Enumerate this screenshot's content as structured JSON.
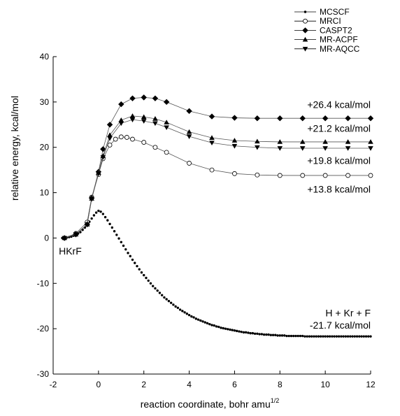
{
  "chart_data": {
    "type": "line",
    "xlabel": "reaction coordinate, bohr amu",
    "xlabel_sup": "1/2",
    "ylabel": "relative energy, kcal/mol",
    "xlim": [
      -2,
      12
    ],
    "ylim": [
      -30,
      40
    ],
    "xticks": [
      -2,
      0,
      2,
      4,
      6,
      8,
      10,
      12
    ],
    "yticks": [
      -30,
      -20,
      -10,
      0,
      10,
      20,
      30,
      40
    ],
    "grid": false,
    "legend_position": "top-right",
    "series": [
      {
        "name": "MCSCF",
        "marker": "dot",
        "x": [
          -1.6,
          -1.5,
          -1.4,
          -1.3,
          -1.2,
          -1.1,
          -1.0,
          -0.9,
          -0.8,
          -0.7,
          -0.6,
          -0.5,
          -0.4,
          -0.3,
          -0.2,
          -0.1,
          0.0,
          0.1,
          0.2,
          0.3,
          0.4,
          0.5,
          0.6,
          0.7,
          0.8,
          0.9,
          1.0,
          1.1,
          1.2,
          1.3,
          1.4,
          1.5,
          1.6,
          1.7,
          1.8,
          1.9,
          2.0,
          2.1,
          2.2,
          2.3,
          2.4,
          2.5,
          2.6,
          2.7,
          2.8,
          2.9,
          3.0,
          3.1,
          3.2,
          3.3,
          3.4,
          3.5,
          3.6,
          3.7,
          3.8,
          3.9,
          4.0,
          4.1,
          4.2,
          4.3,
          4.4,
          4.5,
          4.6,
          4.7,
          4.8,
          4.9,
          5.0,
          5.1,
          5.2,
          5.3,
          5.4,
          5.5,
          5.6,
          5.7,
          5.8,
          5.9,
          6.0,
          6.1,
          6.2,
          6.3,
          6.4,
          6.5,
          6.6,
          6.7,
          6.8,
          6.9,
          7.0,
          7.1,
          7.2,
          7.3,
          7.4,
          7.5,
          7.6,
          7.7,
          7.8,
          7.9,
          8.0,
          8.1,
          8.2,
          8.3,
          8.4,
          8.5,
          8.6,
          8.7,
          8.8,
          8.9,
          9.0,
          9.1,
          9.2,
          9.3,
          9.4,
          9.5,
          9.6,
          9.7,
          9.8,
          9.9,
          10.0,
          10.1,
          10.2,
          10.3,
          10.4,
          10.5,
          10.6,
          10.7,
          10.8,
          10.9,
          11.0,
          11.1,
          11.2,
          11.3,
          11.4,
          11.5,
          11.6,
          11.7,
          11.8,
          11.9,
          12.0
        ],
        "y": [
          0.0,
          0.0,
          0.1,
          0.2,
          0.3,
          0.5,
          0.7,
          1.0,
          1.3,
          1.8,
          2.3,
          2.9,
          3.6,
          4.3,
          5.0,
          5.6,
          6.0,
          5.8,
          5.3,
          4.6,
          3.9,
          3.1,
          2.3,
          1.5,
          0.7,
          -0.1,
          -0.9,
          -1.7,
          -2.5,
          -3.3,
          -4.0,
          -4.8,
          -5.5,
          -6.2,
          -6.9,
          -7.6,
          -8.2,
          -8.8,
          -9.4,
          -10.0,
          -10.6,
          -11.1,
          -11.6,
          -12.1,
          -12.6,
          -13.1,
          -13.5,
          -13.9,
          -14.3,
          -14.7,
          -15.1,
          -15.4,
          -15.8,
          -16.1,
          -16.4,
          -16.7,
          -17.0,
          -17.3,
          -17.5,
          -17.8,
          -18.0,
          -18.2,
          -18.4,
          -18.6,
          -18.8,
          -19.0,
          -19.2,
          -19.3,
          -19.5,
          -19.6,
          -19.8,
          -19.9,
          -20.0,
          -20.1,
          -20.2,
          -20.3,
          -20.4,
          -20.5,
          -20.6,
          -20.7,
          -20.8,
          -20.8,
          -20.9,
          -21.0,
          -21.0,
          -21.1,
          -21.1,
          -21.2,
          -21.2,
          -21.3,
          -21.3,
          -21.3,
          -21.4,
          -21.4,
          -21.4,
          -21.5,
          -21.5,
          -21.5,
          -21.5,
          -21.6,
          -21.6,
          -21.6,
          -21.6,
          -21.6,
          -21.6,
          -21.6,
          -21.6,
          -21.7,
          -21.7,
          -21.7,
          -21.7,
          -21.7,
          -21.7,
          -21.7,
          -21.7,
          -21.7,
          -21.7,
          -21.7,
          -21.7,
          -21.7,
          -21.7,
          -21.7,
          -21.7,
          -21.7,
          -21.7,
          -21.7,
          -21.7,
          -21.7,
          -21.7,
          -21.7,
          -21.7,
          -21.7,
          -21.7,
          -21.7,
          -21.7,
          -21.7,
          -21.7
        ]
      },
      {
        "name": "MRCI",
        "marker": "circle-open",
        "x": [
          -1.5,
          -1.0,
          -0.5,
          -0.3,
          0.0,
          0.2,
          0.5,
          0.75,
          1.0,
          1.25,
          1.5,
          2.0,
          2.5,
          3.0,
          4.0,
          5.0,
          6.0,
          7.0,
          8.0,
          9.0,
          10.0,
          11.0,
          12.0
        ],
        "y": [
          0.0,
          1.0,
          3.5,
          9.0,
          14.0,
          17.5,
          20.5,
          21.8,
          22.3,
          22.2,
          21.8,
          21.1,
          20.0,
          18.9,
          16.5,
          15.0,
          14.2,
          13.9,
          13.8,
          13.8,
          13.8,
          13.8,
          13.8
        ]
      },
      {
        "name": "CASPT2",
        "marker": "diamond",
        "x": [
          -1.5,
          -1.0,
          -0.5,
          -0.3,
          0.0,
          0.2,
          0.5,
          1.0,
          1.5,
          2.0,
          2.5,
          3.0,
          4.0,
          5.0,
          6.0,
          7.0,
          8.0,
          9.0,
          10.0,
          11.0,
          12.0
        ],
        "y": [
          0.0,
          0.8,
          3.0,
          8.8,
          14.6,
          19.6,
          25.0,
          29.5,
          30.8,
          31.0,
          30.8,
          30.0,
          28.0,
          26.8,
          26.5,
          26.4,
          26.4,
          26.4,
          26.4,
          26.4,
          26.4
        ]
      },
      {
        "name": "MR-ACPF",
        "marker": "triangle-up",
        "x": [
          -1.5,
          -1.0,
          -0.5,
          -0.3,
          0.0,
          0.2,
          0.5,
          1.0,
          1.5,
          2.0,
          2.5,
          3.0,
          4.0,
          5.0,
          6.0,
          7.0,
          8.0,
          9.0,
          10.0,
          11.0,
          12.0
        ],
        "y": [
          0.0,
          0.8,
          3.0,
          8.7,
          14.4,
          18.1,
          22.7,
          26.0,
          26.9,
          26.7,
          26.3,
          25.5,
          23.4,
          22.1,
          21.5,
          21.3,
          21.2,
          21.2,
          21.2,
          21.2,
          21.2
        ]
      },
      {
        "name": "MR-AQCC",
        "marker": "triangle-down",
        "x": [
          -1.5,
          -1.0,
          -0.5,
          -0.3,
          0.0,
          0.2,
          0.5,
          1.0,
          1.5,
          2.0,
          2.5,
          3.0,
          4.0,
          5.0,
          6.0,
          7.0,
          8.0,
          9.0,
          10.0,
          11.0,
          12.0
        ],
        "y": [
          0.0,
          0.8,
          3.0,
          8.6,
          14.2,
          17.8,
          22.0,
          25.3,
          26.1,
          25.8,
          25.3,
          24.4,
          22.4,
          21.0,
          20.3,
          20.0,
          19.8,
          19.8,
          19.8,
          19.8,
          19.8
        ]
      }
    ],
    "annotations": [
      {
        "text": "+26.4 kcal/mol",
        "x": 12.0,
        "y": 28.7,
        "anchor": "end"
      },
      {
        "text": "+21.2 kcal/mol",
        "x": 12.0,
        "y": 23.4,
        "anchor": "end"
      },
      {
        "text": "+19.8 kcal/mol",
        "x": 12.0,
        "y": 16.3,
        "anchor": "end"
      },
      {
        "text": "+13.8 kcal/mol",
        "x": 12.0,
        "y": 10.0,
        "anchor": "end"
      },
      {
        "text": "HKrF",
        "x": -1.75,
        "y": -3.6,
        "anchor": "start"
      },
      {
        "text": "H + Kr + F",
        "x": 12.0,
        "y": -17.3,
        "anchor": "end"
      },
      {
        "text": "-21.7 kcal/mol",
        "x": 12.0,
        "y": -20.0,
        "anchor": "end"
      }
    ]
  }
}
